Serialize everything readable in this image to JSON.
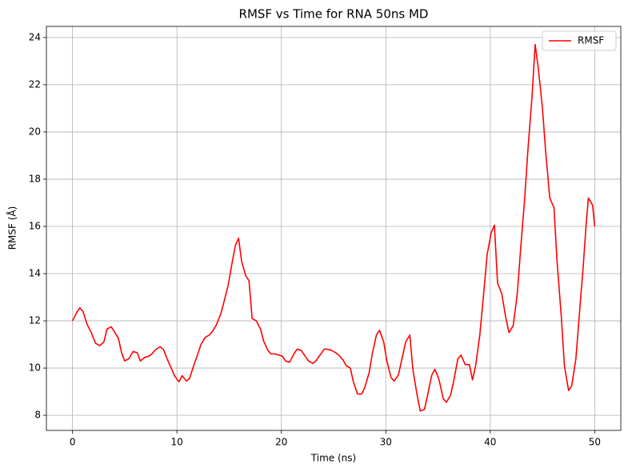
{
  "chart_data": {
    "type": "line",
    "title": "RMSF vs Time for RNA 50ns MD",
    "x_label": "Time (ns)",
    "y_label": "RMSF (Å)",
    "x": [
      0,
      0.4,
      0.7,
      1.0,
      1.4,
      1.8,
      2.2,
      2.6,
      3.0,
      3.3,
      3.7,
      4.0,
      4.4,
      4.7,
      5.0,
      5.4,
      5.8,
      6.2,
      6.5,
      6.9,
      7.3,
      7.6,
      8.0,
      8.4,
      8.7,
      9.1,
      9.5,
      9.8,
      10.2,
      10.5,
      10.9,
      11.2,
      11.6,
      12.0,
      12.3,
      12.7,
      13.1,
      13.4,
      13.8,
      14.2,
      14.5,
      14.9,
      15.3,
      15.6,
      15.9,
      16.2,
      16.6,
      16.9,
      17.2,
      17.6,
      18.0,
      18.3,
      18.7,
      19.0,
      19.4,
      19.8,
      20.1,
      20.4,
      20.8,
      21.2,
      21.5,
      21.9,
      22.2,
      22.6,
      23.0,
      23.3,
      23.7,
      24.1,
      24.4,
      24.8,
      25.2,
      25.5,
      25.9,
      26.2,
      26.6,
      26.9,
      27.3,
      27.7,
      28.0,
      28.4,
      28.7,
      29.1,
      29.4,
      29.8,
      30.1,
      30.5,
      30.8,
      31.2,
      31.5,
      31.9,
      32.3,
      32.6,
      33.0,
      33.3,
      33.7,
      34.0,
      34.4,
      34.7,
      35.1,
      35.5,
      35.8,
      36.2,
      36.5,
      36.9,
      37.2,
      37.6,
      38.0,
      38.3,
      38.6,
      39.0,
      39.4,
      39.7,
      40.1,
      40.4,
      40.7,
      41.1,
      41.5,
      41.8,
      42.2,
      42.6,
      42.9,
      43.3,
      43.6,
      44.0,
      44.3,
      44.6,
      45.0,
      45.3,
      45.7,
      46.1,
      46.4,
      46.8,
      47.1,
      47.5,
      47.8,
      48.2,
      48.5,
      48.9,
      49.2,
      49.4,
      49.8,
      50.0
    ],
    "series": [
      {
        "name": "RMSF",
        "color": "#ff0000",
        "values": [
          12.0,
          12.35,
          12.55,
          12.4,
          11.85,
          11.5,
          11.05,
          10.95,
          11.1,
          11.65,
          11.75,
          11.55,
          11.25,
          10.65,
          10.3,
          10.4,
          10.7,
          10.65,
          10.3,
          10.45,
          10.5,
          10.6,
          10.8,
          10.9,
          10.8,
          10.35,
          9.95,
          9.65,
          9.42,
          9.68,
          9.45,
          9.55,
          10.1,
          10.6,
          11.0,
          11.3,
          11.4,
          11.55,
          11.85,
          12.3,
          12.8,
          13.5,
          14.5,
          15.2,
          15.5,
          14.5,
          13.9,
          13.7,
          12.1,
          12.0,
          11.65,
          11.15,
          10.75,
          10.6,
          10.6,
          10.55,
          10.5,
          10.3,
          10.25,
          10.6,
          10.8,
          10.75,
          10.55,
          10.3,
          10.2,
          10.3,
          10.55,
          10.8,
          10.8,
          10.75,
          10.65,
          10.55,
          10.35,
          10.1,
          10.0,
          9.4,
          8.9,
          8.9,
          9.2,
          9.8,
          10.6,
          11.4,
          11.6,
          11.1,
          10.3,
          9.6,
          9.45,
          9.7,
          10.3,
          11.1,
          11.4,
          9.9,
          8.85,
          8.18,
          8.25,
          8.85,
          9.7,
          9.95,
          9.5,
          8.7,
          8.55,
          8.85,
          9.45,
          10.4,
          10.55,
          10.15,
          10.15,
          9.5,
          10.1,
          11.4,
          13.3,
          14.8,
          15.75,
          16.05,
          13.6,
          13.15,
          12.1,
          11.5,
          11.8,
          13.2,
          15.0,
          17.2,
          19.2,
          21.5,
          23.7,
          22.7,
          21.0,
          19.2,
          17.2,
          16.8,
          14.5,
          12.2,
          10.1,
          9.05,
          9.25,
          10.4,
          12.1,
          14.3,
          16.2,
          17.2,
          16.9,
          16.0
        ]
      }
    ],
    "xlim": [
      -2.5,
      52.5
    ],
    "ylim": [
      7.36,
      24.47
    ],
    "xticks": [
      0,
      10,
      20,
      30,
      40,
      50
    ],
    "yticks": [
      8,
      10,
      12,
      14,
      16,
      18,
      20,
      22,
      24
    ],
    "grid": true,
    "legend": "upper right"
  }
}
